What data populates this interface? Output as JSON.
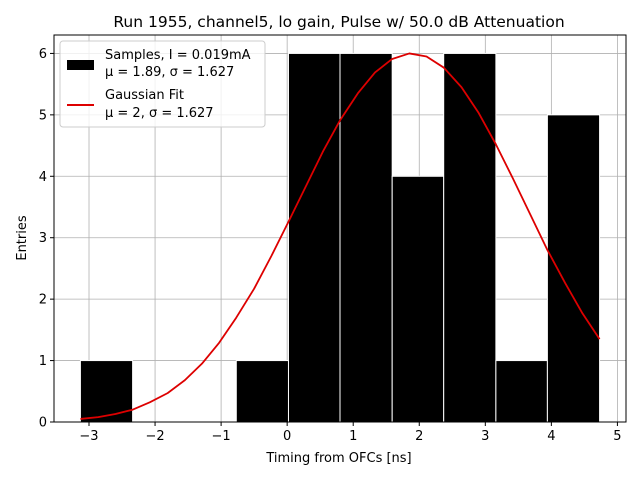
{
  "chart_data": {
    "type": "bar",
    "title": "Run 1955, channel5, lo gain, Pulse w/ 50.0 dB Attenuation",
    "xlabel": "Timing from OFCs [ns]",
    "ylabel": "Entries",
    "xlim": [
      -3.53,
      5.13
    ],
    "ylim": [
      0,
      6.3
    ],
    "xticks": [
      -3,
      -2,
      -1,
      0,
      1,
      2,
      3,
      4,
      5
    ],
    "yticks": [
      0,
      1,
      2,
      3,
      4,
      5,
      6
    ],
    "grid": true,
    "legend_position": "top-left",
    "histogram": {
      "name": "Samples, I = 0.019mA",
      "stats": "μ = 1.89, σ = 1.627",
      "color": "#000000",
      "edge_color": "#ffffff",
      "bins": [
        {
          "x0": -3.13,
          "x1": -2.34,
          "count": 1
        },
        {
          "x0": -0.77,
          "x1": 0.02,
          "count": 1
        },
        {
          "x0": 0.02,
          "x1": 0.8,
          "count": 6
        },
        {
          "x0": 0.8,
          "x1": 1.59,
          "count": 6
        },
        {
          "x0": 1.59,
          "x1": 2.37,
          "count": 4
        },
        {
          "x0": 2.37,
          "x1": 3.16,
          "count": 6
        },
        {
          "x0": 3.16,
          "x1": 3.94,
          "count": 1
        },
        {
          "x0": 3.94,
          "x1": 4.73,
          "count": 5
        }
      ]
    },
    "fit": {
      "name": "Gaussian Fit",
      "stats": "μ = 2, σ = 1.627",
      "color": "#dd0000",
      "type": "line",
      "x": [
        -3.13,
        -2.86,
        -2.6,
        -2.34,
        -2.08,
        -1.81,
        -1.55,
        -1.29,
        -1.03,
        -0.77,
        -0.5,
        -0.24,
        0.02,
        0.28,
        0.54,
        0.8,
        1.07,
        1.33,
        1.59,
        1.85,
        2.11,
        2.37,
        2.64,
        2.9,
        3.16,
        3.42,
        3.68,
        3.94,
        4.21,
        4.47,
        4.73
      ],
      "y": [
        0.05,
        0.08,
        0.13,
        0.2,
        0.32,
        0.47,
        0.68,
        0.95,
        1.29,
        1.7,
        2.17,
        2.7,
        3.26,
        3.83,
        4.4,
        4.91,
        5.35,
        5.69,
        5.91,
        6.0,
        5.95,
        5.77,
        5.45,
        5.03,
        4.52,
        3.96,
        3.38,
        2.8,
        2.26,
        1.77,
        1.35
      ]
    }
  }
}
